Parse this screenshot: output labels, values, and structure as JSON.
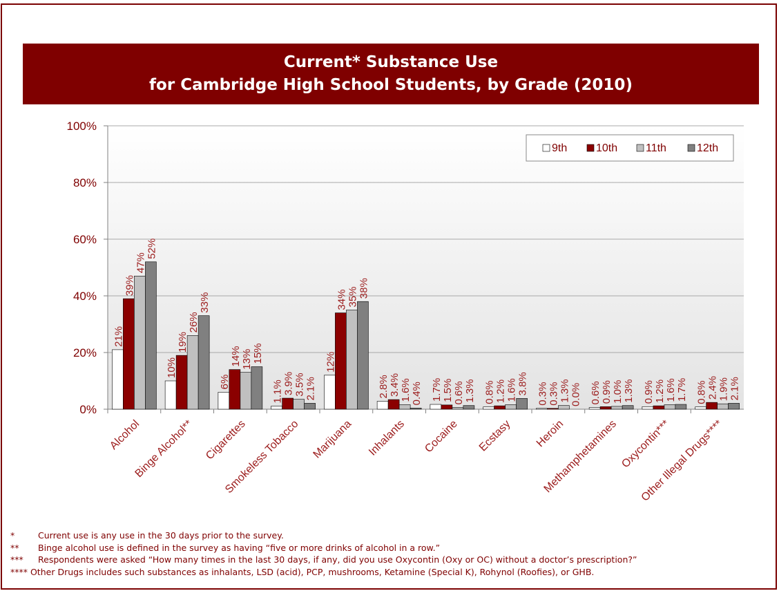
{
  "title": {
    "line1": "Current* Substance Use",
    "line2": "for Cambridge High School Students, by Grade (2010)"
  },
  "colors": {
    "accent": "#7f0000",
    "label_text": "#9b1b1b",
    "series": [
      "#ffffff",
      "#8b0000",
      "#c0c0c0",
      "#808080"
    ]
  },
  "legend": {
    "position": "top-right",
    "items": [
      "9th",
      "10th",
      "11th",
      "12th"
    ]
  },
  "chart_data": {
    "type": "bar",
    "title": "Current* Substance Use for Cambridge High School Students, by Grade (2010)",
    "xlabel": "",
    "ylabel": "",
    "ylim": [
      0,
      100
    ],
    "y_ticks": [
      "0%",
      "20%",
      "40%",
      "60%",
      "80%",
      "100%"
    ],
    "grid": true,
    "legend_position": "top-right",
    "categories": [
      "Alcohol",
      "Binge Alcohol**",
      "Cigarettes",
      "Smokeless Tobacco",
      "Marijuana",
      "Inhalants",
      "Cocaine",
      "Ecstasy",
      "Heroin",
      "Methamphetamines",
      "Oxycontin***",
      "Other Illegal Drugs****"
    ],
    "series": [
      {
        "name": "9th",
        "values": [
          21,
          10,
          6,
          1.1,
          12,
          2.8,
          1.7,
          0.8,
          0.3,
          0.6,
          0.9,
          0.8
        ],
        "labels": [
          "21%",
          "10%",
          "6%",
          "1.1%",
          "12%",
          "2.8%",
          "1.7%",
          "0.8%",
          "0.3%",
          "0.6%",
          "0.9%",
          "0.8%"
        ]
      },
      {
        "name": "10th",
        "values": [
          39,
          19,
          14,
          3.9,
          34,
          3.4,
          1.5,
          1.2,
          0.3,
          0.9,
          1.2,
          2.4
        ],
        "labels": [
          "39%",
          "19%",
          "14%",
          "3.9%",
          "34%",
          "3.4%",
          "1.5%",
          "1.2%",
          "0.3%",
          "0.9%",
          "1.2%",
          "2.4%"
        ]
      },
      {
        "name": "11th",
        "values": [
          47,
          26,
          13,
          3.5,
          35,
          1.6,
          0.6,
          1.6,
          1.3,
          1.0,
          1.6,
          1.9
        ],
        "labels": [
          "47%",
          "26%",
          "13%",
          "3.5%",
          "35%",
          "1.6%",
          "0.6%",
          "1.6%",
          "1.3%",
          "1.0%",
          "1.6%",
          "1.9%"
        ]
      },
      {
        "name": "12th",
        "values": [
          52,
          33,
          15,
          2.1,
          38,
          0.4,
          1.3,
          3.8,
          0.0,
          1.3,
          1.7,
          2.1
        ],
        "labels": [
          "52%",
          "33%",
          "15%",
          "2.1%",
          "38%",
          "0.4%",
          "1.3%",
          "3.8%",
          "0.0%",
          "1.3%",
          "1.7%",
          "2.1%"
        ]
      }
    ]
  },
  "footnotes": [
    {
      "mark": "*",
      "text": "Current use is any use in the 30 days prior to the survey."
    },
    {
      "mark": "**",
      "text": "Binge alcohol use is defined in the survey as having “five or more drinks of alcohol in a row.”"
    },
    {
      "mark": "***",
      "text": "Respondents were asked “How many times in the last 30 days, if any, did you use Oxycontin (Oxy or OC) without a doctor’s prescription?”"
    },
    {
      "text": "**** Other Drugs includes such substances as inhalants, LSD (acid), PCP, mushrooms, Ketamine (Special K), Rohynol (Roofies), or GHB."
    }
  ]
}
